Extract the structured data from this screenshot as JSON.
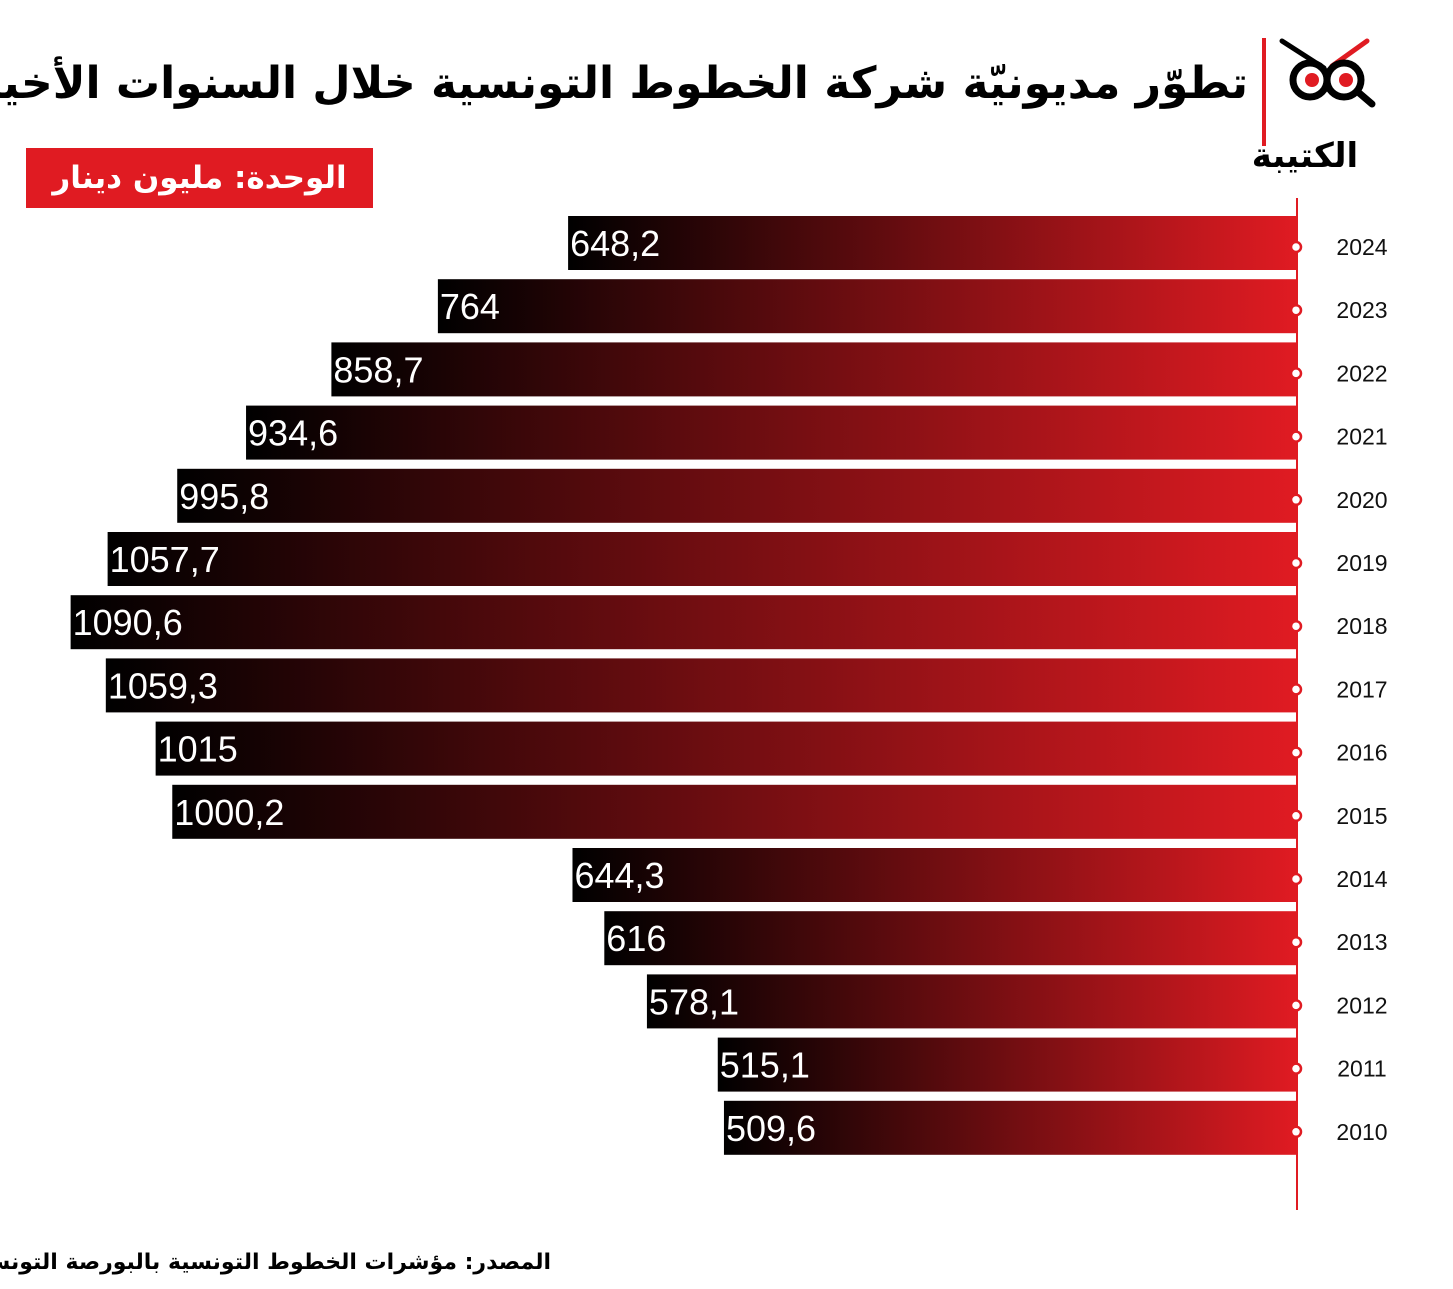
{
  "title": "تطوّر مديونيّة شركة الخطوط التونسية خلال السنوات الأخيرة",
  "brand": {
    "name": "الكتيبة",
    "accent": "#e01b22"
  },
  "unit_badge": "الوحدة: مليون دينار",
  "source": "المصدر: مؤشرات الخطوط التونسية بالبورصة التونسية",
  "chart_data": {
    "type": "bar",
    "orientation": "horizontal",
    "categories": [
      "2024",
      "2023",
      "2022",
      "2021",
      "2020",
      "2019",
      "2018",
      "2017",
      "2016",
      "2015",
      "2014",
      "2013",
      "2012",
      "2011",
      "2010"
    ],
    "values": [
      648.2,
      764,
      858.7,
      934.6,
      995.8,
      1057.7,
      1090.6,
      1059.3,
      1015,
      1000.2,
      644.3,
      616,
      578.1,
      515.1,
      509.6
    ],
    "data_labels": [
      "648,2",
      "764",
      "858,7",
      "934,6",
      "995,8",
      "1057,7",
      "1090,6",
      "1059,3",
      "1015",
      "1000,2",
      "644,3",
      "616",
      "578,1",
      "515,1",
      "509,6"
    ],
    "gradient": [
      "#000000",
      "#e01b22"
    ],
    "grid": false
  }
}
